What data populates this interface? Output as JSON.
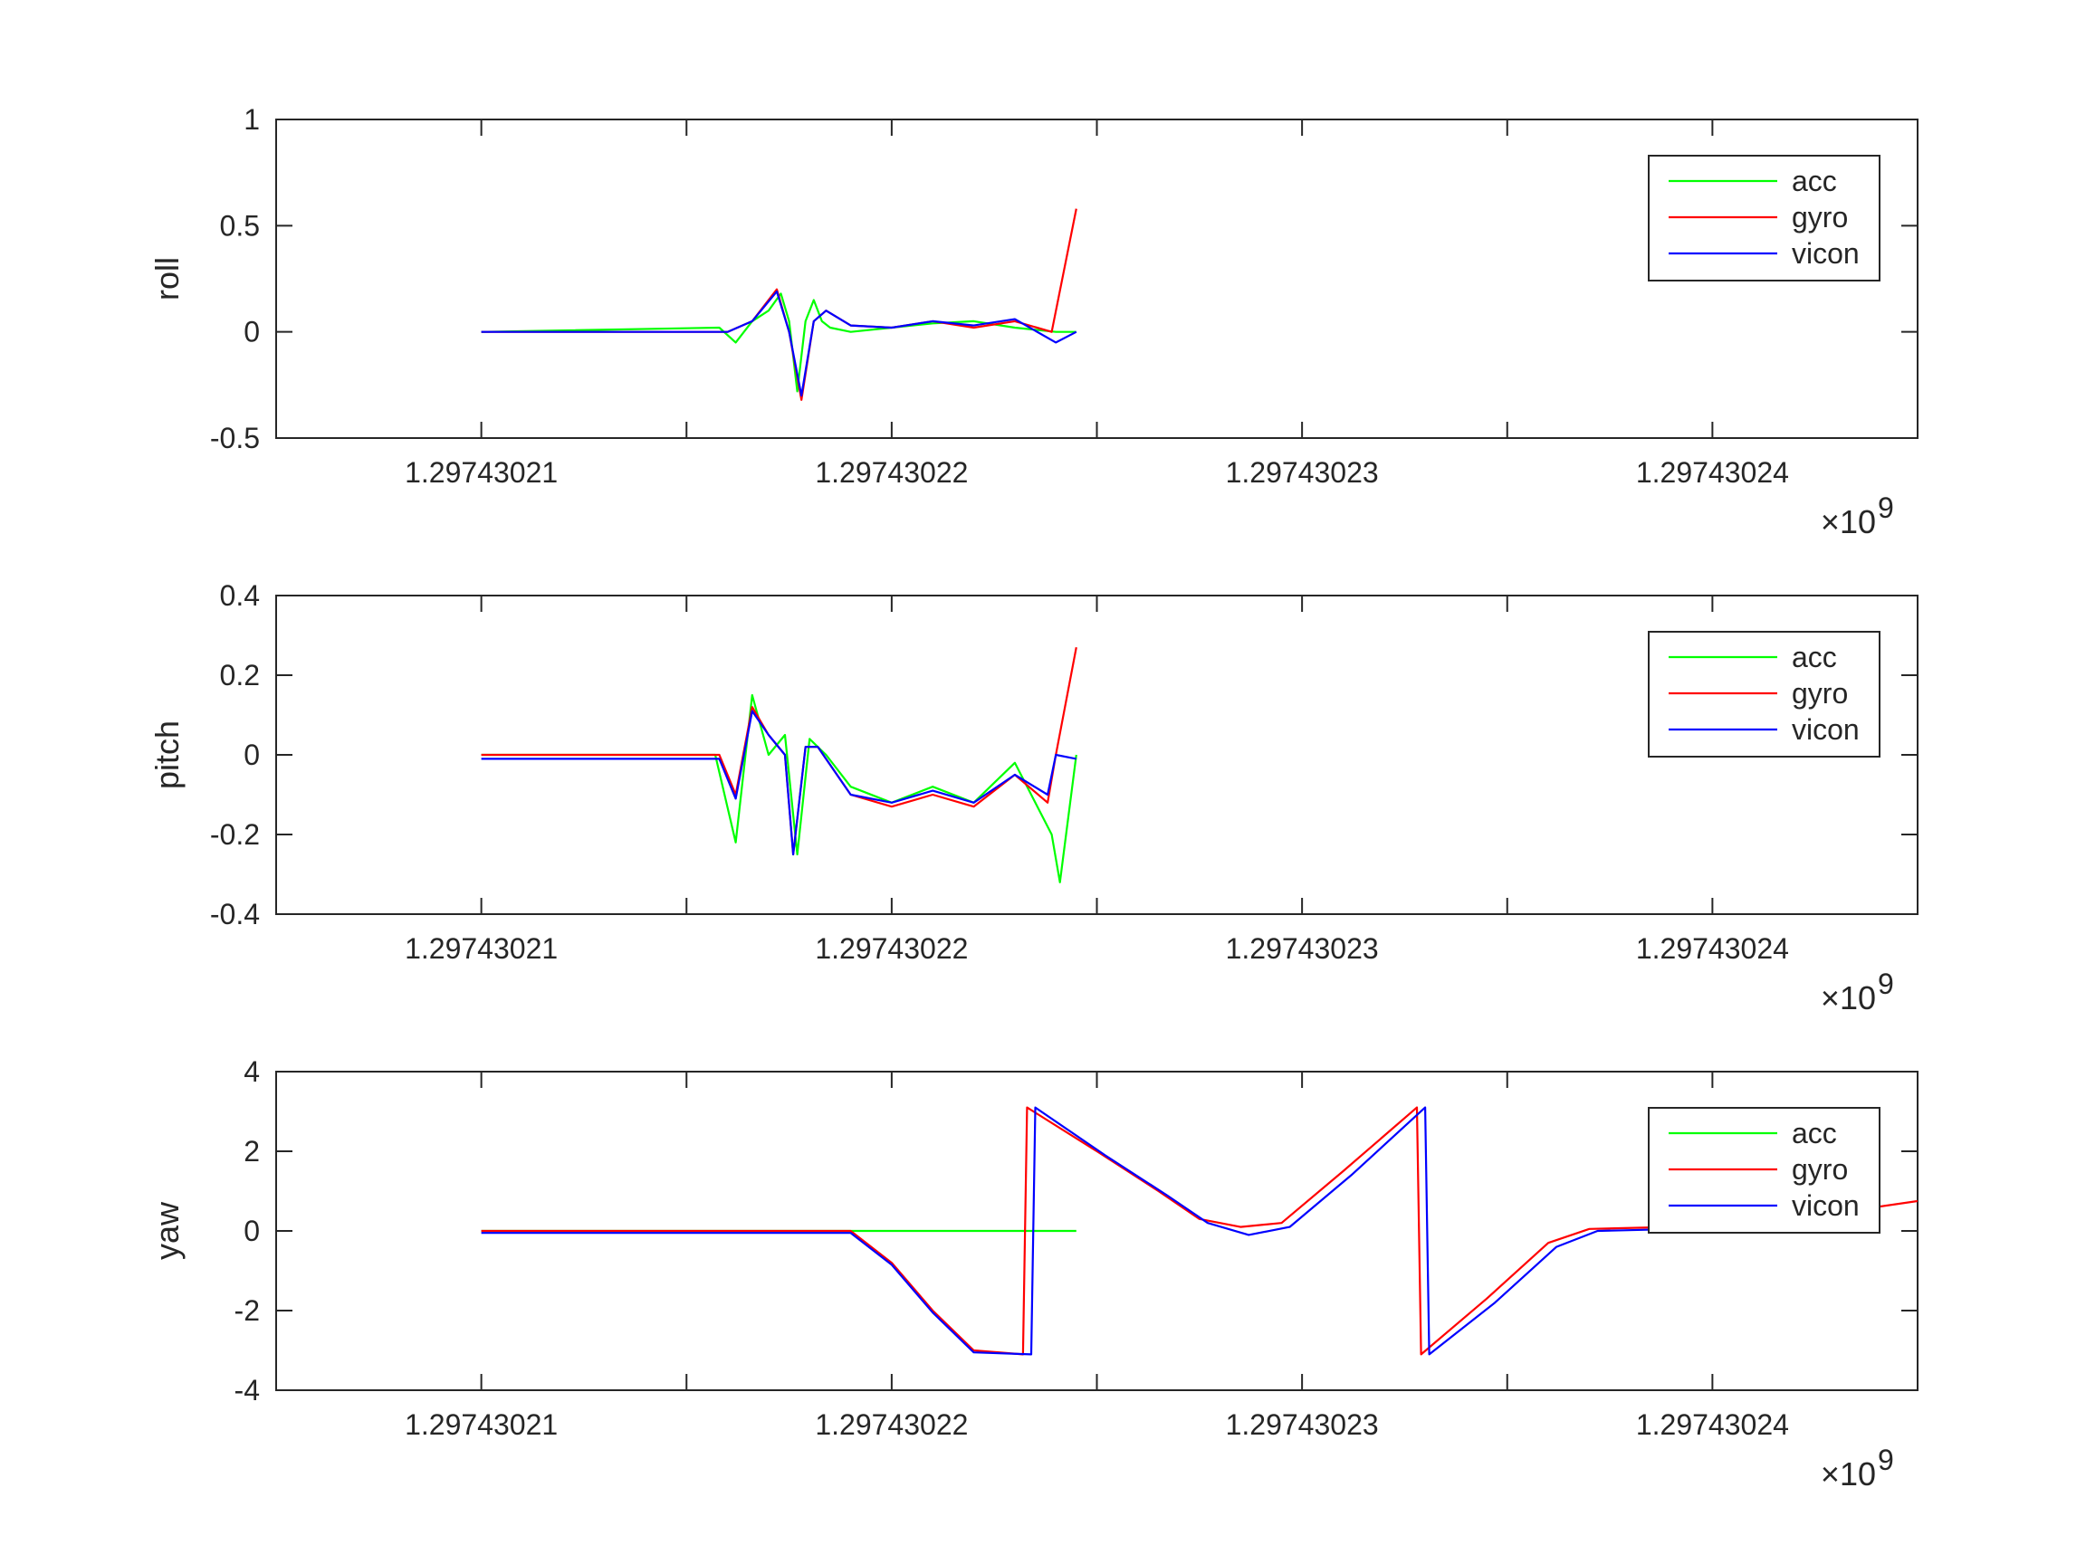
{
  "figure": {
    "exponent_label": "×10",
    "exponent_power": "9"
  },
  "legend": {
    "entries": [
      {
        "name": "acc",
        "color": "#00ff00"
      },
      {
        "name": "gyro",
        "color": "#ff0000"
      },
      {
        "name": "vicon",
        "color": "#0000ff"
      }
    ]
  },
  "chart_data": [
    {
      "type": "line",
      "ylabel": "roll",
      "xlabel": "",
      "xlim": [
        1.297430205,
        1.297430245
      ],
      "ylim": [
        -0.5,
        1
      ],
      "x_ticks": [
        1.29743021,
        1.29743022,
        1.29743023,
        1.29743024
      ],
      "x_tick_labels": [
        "1.29743021",
        "1.29743022",
        "1.29743023",
        "1.29743024"
      ],
      "x_minor_ticks": [
        1.297430215,
        1.297430225,
        1.297430235
      ],
      "y_ticks": [
        -0.5,
        0,
        0.5,
        1
      ],
      "y_tick_labels": [
        "-0.5",
        "0",
        "0.5",
        "1"
      ],
      "x_scale_note": "×10^9",
      "series": [
        {
          "name": "acc",
          "color": "#00ff00",
          "x": [
            1.29743021,
            1.2974302158,
            1.2974302162,
            1.2974302166,
            1.297430217,
            1.2974302173,
            1.2974302175,
            1.2974302177,
            1.2974302179,
            1.2974302181,
            1.2974302183,
            1.2974302185,
            1.297430219,
            1.29743022,
            1.297430221,
            1.297430222,
            1.297430223,
            1.297430224,
            1.2974302245
          ],
          "y": [
            0,
            0.02,
            -0.05,
            0.05,
            0.1,
            0.18,
            0.05,
            -0.28,
            0.05,
            0.15,
            0.05,
            0.02,
            0.0,
            0.02,
            0.04,
            0.05,
            0.02,
            0.0,
            0.0
          ]
        },
        {
          "name": "gyro",
          "color": "#ff0000",
          "x": [
            1.29743021,
            1.297430216,
            1.2974302166,
            1.2974302172,
            1.2974302175,
            1.2974302178,
            1.2974302181,
            1.2974302184,
            1.297430219,
            1.29743022,
            1.297430221,
            1.297430222,
            1.297430223,
            1.2974302239,
            1.2974302245
          ],
          "y": [
            0,
            0.0,
            0.05,
            0.2,
            0.0,
            -0.32,
            0.05,
            0.1,
            0.03,
            0.02,
            0.05,
            0.02,
            0.05,
            0.0,
            0.58
          ]
        },
        {
          "name": "vicon",
          "color": "#0000ff",
          "x": [
            1.29743021,
            1.297430216,
            1.2974302166,
            1.2974302172,
            1.2974302175,
            1.2974302178,
            1.2974302181,
            1.2974302184,
            1.297430219,
            1.29743022,
            1.297430221,
            1.297430222,
            1.297430223,
            1.297430224,
            1.2974302245
          ],
          "y": [
            0,
            0.0,
            0.05,
            0.19,
            0.0,
            -0.3,
            0.05,
            0.1,
            0.03,
            0.02,
            0.05,
            0.03,
            0.06,
            -0.05,
            0.0
          ]
        }
      ]
    },
    {
      "type": "line",
      "ylabel": "pitch",
      "xlabel": "",
      "xlim": [
        1.297430205,
        1.297430245
      ],
      "ylim": [
        -0.4,
        0.4
      ],
      "x_ticks": [
        1.29743021,
        1.29743022,
        1.29743023,
        1.29743024
      ],
      "x_tick_labels": [
        "1.29743021",
        "1.29743022",
        "1.29743023",
        "1.29743024"
      ],
      "x_minor_ticks": [
        1.297430215,
        1.297430225,
        1.297430235
      ],
      "y_ticks": [
        -0.4,
        -0.2,
        0,
        0.2,
        0.4
      ],
      "y_tick_labels": [
        "-0.4",
        "-0.2",
        "0",
        "0.2",
        "0.4"
      ],
      "x_scale_note": "×10^9",
      "series": [
        {
          "name": "acc",
          "color": "#00ff00",
          "x": [
            1.29743021,
            1.2974302157,
            1.2974302162,
            1.2974302166,
            1.297430217,
            1.2974302174,
            1.2974302177,
            1.297430218,
            1.2974302184,
            1.297430219,
            1.29743022,
            1.297430221,
            1.297430222,
            1.297430223,
            1.2974302239,
            1.2974302241,
            1.2974302245
          ],
          "y": [
            0,
            0.0,
            -0.22,
            0.15,
            0.0,
            0.05,
            -0.25,
            0.04,
            0.0,
            -0.08,
            -0.12,
            -0.08,
            -0.12,
            -0.02,
            -0.2,
            -0.32,
            0.0
          ]
        },
        {
          "name": "gyro",
          "color": "#ff0000",
          "x": [
            1.29743021,
            1.2974302158,
            1.2974302162,
            1.2974302166,
            1.297430217,
            1.2974302174,
            1.2974302176,
            1.2974302179,
            1.2974302182,
            1.297430219,
            1.29743022,
            1.297430221,
            1.297430222,
            1.297430223,
            1.2974302238,
            1.297430224,
            1.2974302245
          ],
          "y": [
            0,
            0.0,
            -0.1,
            0.12,
            0.05,
            0.0,
            -0.25,
            0.02,
            0.02,
            -0.1,
            -0.13,
            -0.1,
            -0.13,
            -0.05,
            -0.12,
            0.0,
            0.27
          ]
        },
        {
          "name": "vicon",
          "color": "#0000ff",
          "x": [
            1.29743021,
            1.2974302158,
            1.2974302162,
            1.2974302166,
            1.297430217,
            1.2974302174,
            1.2974302176,
            1.2974302179,
            1.2974302182,
            1.297430219,
            1.29743022,
            1.297430221,
            1.297430222,
            1.297430223,
            1.2974302238,
            1.297430224,
            1.2974302245
          ],
          "y": [
            -0.01,
            -0.01,
            -0.11,
            0.11,
            0.05,
            0.0,
            -0.25,
            0.02,
            0.02,
            -0.1,
            -0.12,
            -0.09,
            -0.12,
            -0.05,
            -0.1,
            0.0,
            -0.01
          ]
        }
      ]
    },
    {
      "type": "line",
      "ylabel": "yaw",
      "xlabel": "",
      "xlim": [
        1.297430205,
        1.297430245
      ],
      "ylim": [
        -4,
        4
      ],
      "x_ticks": [
        1.29743021,
        1.29743022,
        1.29743023,
        1.29743024
      ],
      "x_tick_labels": [
        "1.29743021",
        "1.29743022",
        "1.29743023",
        "1.29743024"
      ],
      "x_minor_ticks": [
        1.297430215,
        1.297430225,
        1.297430235
      ],
      "y_ticks": [
        -4,
        -2,
        0,
        2,
        4
      ],
      "y_tick_labels": [
        "-4",
        "-2",
        "0",
        "2",
        "4"
      ],
      "x_scale_note": "×10^9",
      "series": [
        {
          "name": "acc",
          "color": "#00ff00",
          "x": [
            1.29743021,
            1.2974302245
          ],
          "y": [
            0,
            0
          ]
        },
        {
          "name": "gyro",
          "color": "#ff0000",
          "x": [
            1.29743021,
            1.297430218,
            1.297430219,
            1.29743022,
            1.297430221,
            1.297430222,
            1.2974302232,
            1.2974302233,
            1.297430225,
            1.2974302265,
            1.2974302275,
            1.2974302285,
            1.2974302295,
            1.297430231,
            1.2974302328,
            1.2974302329,
            1.2974302345,
            1.297430236,
            1.297430237,
            1.297430239,
            1.297430241,
            1.297430245
          ],
          "y": [
            0,
            0,
            0,
            -0.8,
            -2.0,
            -3.0,
            -3.1,
            3.1,
            2.0,
            1.0,
            0.3,
            0.1,
            0.2,
            1.5,
            3.1,
            -3.1,
            -1.7,
            -0.3,
            0.05,
            0.1,
            0.15,
            0.75
          ]
        },
        {
          "name": "vicon",
          "color": "#0000ff",
          "x": [
            1.29743021,
            1.297430218,
            1.297430219,
            1.29743022,
            1.297430221,
            1.297430222,
            1.2974302234,
            1.2974302235,
            1.2974302252,
            1.2974302267,
            1.2974302277,
            1.2974302287,
            1.2974302297,
            1.2974302312,
            1.297430233,
            1.2974302331,
            1.2974302347,
            1.2974302362,
            1.2974302372,
            1.2974302392,
            1.2974302412
          ],
          "y": [
            -0.05,
            -0.05,
            -0.05,
            -0.85,
            -2.05,
            -3.05,
            -3.1,
            3.1,
            1.9,
            0.9,
            0.2,
            -0.1,
            0.1,
            1.4,
            3.1,
            -3.1,
            -1.8,
            -0.4,
            0.0,
            0.05,
            0.1
          ]
        }
      ]
    }
  ]
}
